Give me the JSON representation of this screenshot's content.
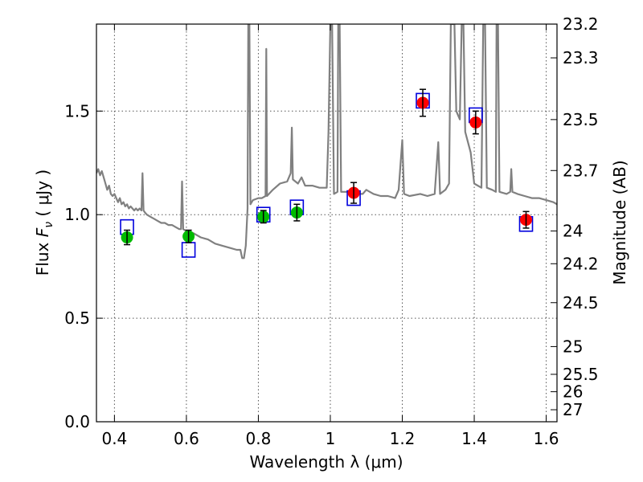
{
  "chart_data": {
    "type": "scatter",
    "xlabel": "Wavelength  λ (μm)",
    "ylabel": "Flux  F_ν  ( μJy )",
    "ylabel_parts": {
      "prefix": "Flux  ",
      "symbol": "F",
      "subscript": "ν",
      "suffix": "  ( μJy )"
    },
    "ylabel_right": "Magnitude (AB)",
    "xlim": [
      0.35,
      1.63
    ],
    "ylim": [
      0.0,
      1.92
    ],
    "grid": true,
    "x_ticks": [
      0.4,
      0.6,
      0.8,
      1.0,
      1.2,
      1.4,
      1.6
    ],
    "x_tick_labels": [
      "0.4",
      "0.6",
      "0.8",
      "1",
      "1.2",
      "1.4",
      "1.6"
    ],
    "y_ticks": [
      0.0,
      0.5,
      1.0,
      1.5
    ],
    "y_tick_labels": [
      "0.0",
      "0.5",
      "1.0",
      "1.5"
    ],
    "magnitude_ticks": [
      {
        "label": "23.2",
        "flux": 1.92
      },
      {
        "label": "23.3",
        "flux": 1.757
      },
      {
        "label": "23.5",
        "flux": 1.459
      },
      {
        "label": "23.7",
        "flux": 1.213
      },
      {
        "label": "24",
        "flux": 0.921
      },
      {
        "label": "24.2",
        "flux": 0.763
      },
      {
        "label": "24.5",
        "flux": 0.575
      },
      {
        "label": "25",
        "flux": 0.363
      },
      {
        "label": "25.5",
        "flux": 0.229
      },
      {
        "label": "26",
        "flux": 0.145
      },
      {
        "label": "27",
        "flux": 0.058
      }
    ],
    "colors": {
      "model": "#808080",
      "optical": "#00bb00",
      "nir": "#ff0000",
      "model_photometry": "#0000dd",
      "errorbar": "#000000",
      "grid": "#555555"
    },
    "series": [
      {
        "marker": "circle",
        "color": "#00bb00",
        "points": [
          {
            "x": 0.435,
            "y": 0.89,
            "err": 0.035
          },
          {
            "x": 0.606,
            "y": 0.895,
            "err": 0.03
          },
          {
            "x": 0.814,
            "y": 0.99,
            "err": 0.03
          },
          {
            "x": 0.907,
            "y": 1.01,
            "err": 0.04
          }
        ]
      },
      {
        "marker": "circle",
        "color": "#ff0000",
        "points": [
          {
            "x": 1.065,
            "y": 1.105,
            "err": 0.05
          },
          {
            "x": 1.257,
            "y": 1.54,
            "err": 0.065
          },
          {
            "x": 1.404,
            "y": 1.445,
            "err": 0.055
          },
          {
            "x": 1.544,
            "y": 0.975,
            "err": 0.04
          }
        ]
      },
      {
        "marker": "square-open",
        "color": "#0000dd",
        "points": [
          {
            "x": 0.435,
            "y": 0.94
          },
          {
            "x": 0.606,
            "y": 0.83
          },
          {
            "x": 0.814,
            "y": 1.0
          },
          {
            "x": 0.907,
            "y": 1.035
          },
          {
            "x": 1.065,
            "y": 1.08
          },
          {
            "x": 1.257,
            "y": 1.55
          },
          {
            "x": 1.404,
            "y": 1.48
          },
          {
            "x": 1.544,
            "y": 0.955
          }
        ]
      },
      {
        "marker": "line",
        "color": "#808080",
        "points": [
          [
            0.35,
            1.2
          ],
          [
            0.355,
            1.22
          ],
          [
            0.36,
            1.19
          ],
          [
            0.365,
            1.21
          ],
          [
            0.37,
            1.18
          ],
          [
            0.375,
            1.15
          ],
          [
            0.38,
            1.12
          ],
          [
            0.385,
            1.14
          ],
          [
            0.39,
            1.1
          ],
          [
            0.395,
            1.09
          ],
          [
            0.4,
            1.1
          ],
          [
            0.405,
            1.08
          ],
          [
            0.41,
            1.06
          ],
          [
            0.415,
            1.08
          ],
          [
            0.42,
            1.05
          ],
          [
            0.425,
            1.06
          ],
          [
            0.43,
            1.04
          ],
          [
            0.435,
            1.05
          ],
          [
            0.44,
            1.03
          ],
          [
            0.445,
            1.04
          ],
          [
            0.45,
            1.03
          ],
          [
            0.455,
            1.02
          ],
          [
            0.46,
            1.03
          ],
          [
            0.465,
            1.02
          ],
          [
            0.47,
            1.03
          ],
          [
            0.475,
            1.02
          ],
          [
            0.478,
            1.2
          ],
          [
            0.481,
            1.02
          ],
          [
            0.485,
            1.01
          ],
          [
            0.49,
            1.0
          ],
          [
            0.5,
            0.99
          ],
          [
            0.51,
            0.98
          ],
          [
            0.52,
            0.97
          ],
          [
            0.53,
            0.96
          ],
          [
            0.54,
            0.96
          ],
          [
            0.55,
            0.95
          ],
          [
            0.56,
            0.95
          ],
          [
            0.57,
            0.94
          ],
          [
            0.58,
            0.93
          ],
          [
            0.585,
            0.93
          ],
          [
            0.588,
            1.16
          ],
          [
            0.591,
            0.93
          ],
          [
            0.6,
            0.92
          ],
          [
            0.62,
            0.91
          ],
          [
            0.64,
            0.89
          ],
          [
            0.66,
            0.88
          ],
          [
            0.68,
            0.86
          ],
          [
            0.7,
            0.85
          ],
          [
            0.72,
            0.84
          ],
          [
            0.74,
            0.83
          ],
          [
            0.75,
            0.83
          ],
          [
            0.755,
            0.79
          ],
          [
            0.76,
            0.79
          ],
          [
            0.765,
            0.85
          ],
          [
            0.77,
            1.03
          ],
          [
            0.772,
            1.92
          ],
          [
            0.775,
            1.92
          ],
          [
            0.778,
            1.05
          ],
          [
            0.785,
            1.07
          ],
          [
            0.8,
            1.08
          ],
          [
            0.81,
            1.08
          ],
          [
            0.82,
            1.09
          ],
          [
            0.822,
            1.8
          ],
          [
            0.824,
            1.09
          ],
          [
            0.84,
            1.12
          ],
          [
            0.86,
            1.15
          ],
          [
            0.88,
            1.16
          ],
          [
            0.89,
            1.2
          ],
          [
            0.893,
            1.42
          ],
          [
            0.896,
            1.17
          ],
          [
            0.91,
            1.15
          ],
          [
            0.92,
            1.18
          ],
          [
            0.93,
            1.14
          ],
          [
            0.95,
            1.14
          ],
          [
            0.97,
            1.13
          ],
          [
            0.99,
            1.13
          ],
          [
            0.995,
            1.4
          ],
          [
            1.0,
            1.92
          ],
          [
            1.005,
            1.92
          ],
          [
            1.01,
            1.1
          ],
          [
            1.02,
            1.11
          ],
          [
            1.022,
            1.92
          ],
          [
            1.026,
            1.92
          ],
          [
            1.03,
            1.11
          ],
          [
            1.05,
            1.11
          ],
          [
            1.07,
            1.1
          ],
          [
            1.09,
            1.1
          ],
          [
            1.1,
            1.12
          ],
          [
            1.12,
            1.1
          ],
          [
            1.14,
            1.09
          ],
          [
            1.16,
            1.09
          ],
          [
            1.18,
            1.08
          ],
          [
            1.19,
            1.12
          ],
          [
            1.2,
            1.36
          ],
          [
            1.205,
            1.1
          ],
          [
            1.22,
            1.09
          ],
          [
            1.25,
            1.1
          ],
          [
            1.27,
            1.09
          ],
          [
            1.29,
            1.1
          ],
          [
            1.3,
            1.35
          ],
          [
            1.305,
            1.1
          ],
          [
            1.32,
            1.12
          ],
          [
            1.33,
            1.15
          ],
          [
            1.335,
            1.92
          ],
          [
            1.345,
            1.92
          ],
          [
            1.35,
            1.5
          ],
          [
            1.36,
            1.46
          ],
          [
            1.365,
            1.92
          ],
          [
            1.37,
            1.92
          ],
          [
            1.375,
            1.4
          ],
          [
            1.39,
            1.3
          ],
          [
            1.4,
            1.15
          ],
          [
            1.42,
            1.13
          ],
          [
            1.425,
            1.92
          ],
          [
            1.43,
            1.92
          ],
          [
            1.435,
            1.13
          ],
          [
            1.45,
            1.12
          ],
          [
            1.46,
            1.11
          ],
          [
            1.462,
            1.92
          ],
          [
            1.466,
            1.92
          ],
          [
            1.47,
            1.11
          ],
          [
            1.49,
            1.1
          ],
          [
            1.5,
            1.11
          ],
          [
            1.503,
            1.22
          ],
          [
            1.506,
            1.11
          ],
          [
            1.52,
            1.1
          ],
          [
            1.54,
            1.09
          ],
          [
            1.56,
            1.08
          ],
          [
            1.58,
            1.08
          ],
          [
            1.6,
            1.07
          ],
          [
            1.62,
            1.06
          ],
          [
            1.63,
            1.05
          ]
        ]
      }
    ]
  }
}
